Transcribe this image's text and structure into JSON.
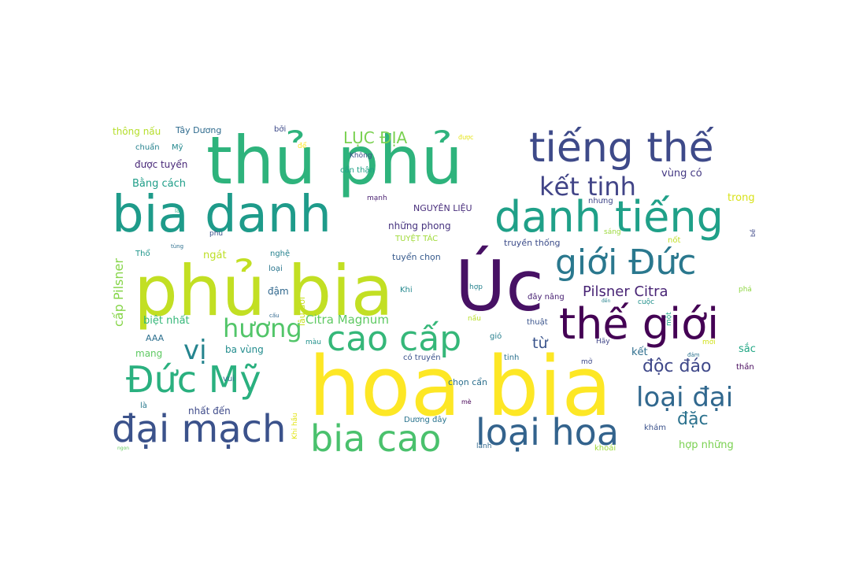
{
  "words": [
    {
      "text": "hoa bia",
      "color": "#fde725"
    },
    {
      "text": "phủ bia",
      "color": "#c2df23"
    },
    {
      "text": "thủ phủ",
      "color": "#2eb37c"
    },
    {
      "text": "Úc",
      "color": "#471164"
    },
    {
      "text": "bia danh",
      "color": "#1e9b8a"
    },
    {
      "text": "tiếng thế",
      "color": "#3e4a89"
    },
    {
      "text": "danh tiếng",
      "color": "#1fa088"
    },
    {
      "text": "thế giới",
      "color": "#440154"
    },
    {
      "text": "giới Đức",
      "color": "#2a788e"
    },
    {
      "text": "cao cấp",
      "color": "#35b779"
    },
    {
      "text": "Đức Mỹ",
      "color": "#2ab07f"
    },
    {
      "text": "đại mạch",
      "color": "#3b528b"
    },
    {
      "text": "bia cao",
      "color": "#4ac16d"
    },
    {
      "text": "loại hoa",
      "color": "#33638d"
    },
    {
      "text": "kết tinh",
      "color": "#414487"
    },
    {
      "text": "loại đại",
      "color": "#31688e"
    },
    {
      "text": "hương",
      "color": "#52c569"
    },
    {
      "text": "vị",
      "color": "#25848e"
    },
    {
      "text": "LỤC ĐỊA",
      "color": "#7ad151"
    },
    {
      "text": "Pilsner Citra",
      "color": "#482475"
    },
    {
      "text": "độc đáo",
      "color": "#3f4889"
    },
    {
      "text": "đặc",
      "color": "#2c728e"
    },
    {
      "text": "Citra Magnum",
      "color": "#5ec962"
    },
    {
      "text": "cấp Pilsner",
      "color": "#86d549"
    },
    {
      "text": "từ",
      "color": "#3a548c"
    },
    {
      "text": "thông nấu",
      "color": "#b5de2b"
    },
    {
      "text": "Tây Dương",
      "color": "#2f6b8e"
    },
    {
      "text": "bởi",
      "color": "#3e4a89"
    },
    {
      "text": "chuẩn",
      "color": "#26828e"
    },
    {
      "text": "Mỹ",
      "color": "#23888e"
    },
    {
      "text": "được tuyển",
      "color": "#482878"
    },
    {
      "text": "Bằng cách",
      "color": "#1f9e89"
    },
    {
      "text": "Không",
      "color": "#3d4e8a"
    },
    {
      "text": "cẩn thận",
      "color": "#1fa187"
    },
    {
      "text": "vùng có",
      "color": "#443983"
    },
    {
      "text": "trong",
      "color": "#d8e219"
    },
    {
      "text": "NGUYÊN LIỆU",
      "color": "#472d7b"
    },
    {
      "text": "những phong",
      "color": "#46337f"
    },
    {
      "text": "TUYỆT TÁC",
      "color": "#a0da39"
    },
    {
      "text": "truyền thống",
      "color": "#3d4d8a"
    },
    {
      "text": "tuyển chọn",
      "color": "#375a8c"
    },
    {
      "text": "ngát",
      "color": "#bddf26"
    },
    {
      "text": "nghệ",
      "color": "#26828e"
    },
    {
      "text": "Thổ",
      "color": "#1f968b"
    },
    {
      "text": "loại",
      "color": "#2a768e"
    },
    {
      "text": "lâu đời",
      "color": "#c8e020"
    },
    {
      "text": "đậm",
      "color": "#31688e"
    },
    {
      "text": "biệt nhất",
      "color": "#35b779"
    },
    {
      "text": "AAA",
      "color": "#2d708e"
    },
    {
      "text": "mang",
      "color": "#5ec962"
    },
    {
      "text": "ba vùng",
      "color": "#228c8d"
    },
    {
      "text": "màu",
      "color": "#21918c"
    },
    {
      "text": "gió",
      "color": "#277f8e"
    },
    {
      "text": "có truyền",
      "color": "#3b528b"
    },
    {
      "text": "tinh",
      "color": "#2c728e"
    },
    {
      "text": "mở",
      "color": "#3e4989"
    },
    {
      "text": "Hãy",
      "color": "#404688"
    },
    {
      "text": "kết",
      "color": "#2e6e8e"
    },
    {
      "text": "sắc",
      "color": "#22a785"
    },
    {
      "text": "thần",
      "color": "#46085c"
    },
    {
      "text": "vui",
      "color": "#2f6c8e"
    },
    {
      "text": "Khi hầu",
      "color": "#e2e418"
    },
    {
      "text": "chọn cẩn",
      "color": "#2d708e"
    },
    {
      "text": "là",
      "color": "#29798e"
    },
    {
      "text": "nhất đến",
      "color": "#3e4a89"
    },
    {
      "text": "Dương đây",
      "color": "#2b748e"
    },
    {
      "text": "khám",
      "color": "#3b528b"
    },
    {
      "text": "hợp những",
      "color": "#7ad151"
    },
    {
      "text": "khoái",
      "color": "#9fda3a"
    },
    {
      "text": "lành",
      "color": "#31688e"
    },
    {
      "text": "đây nâng",
      "color": "#482173"
    },
    {
      "text": "cuộc",
      "color": "#21918c"
    },
    {
      "text": "phá",
      "color": "#8fd744"
    },
    {
      "text": "thuật",
      "color": "#3a548c"
    },
    {
      "text": "một",
      "color": "#20a386"
    },
    {
      "text": "Khi",
      "color": "#23888e"
    },
    {
      "text": "hợp",
      "color": "#26828e"
    },
    {
      "text": "mạnh",
      "color": "#481f70"
    },
    {
      "text": "nhưng",
      "color": "#3f4788"
    },
    {
      "text": "sáng",
      "color": "#9bd93c"
    },
    {
      "text": "nốt",
      "color": "#c0df25"
    },
    {
      "text": "phủ",
      "color": "#3b528b"
    },
    {
      "text": "để",
      "color": "#fde725"
    },
    {
      "text": "được",
      "color": "#e5e419"
    },
    {
      "text": "nấu",
      "color": "#b8de29"
    },
    {
      "text": "mè",
      "color": "#440154"
    },
    {
      "text": "mới",
      "color": "#d2e21b"
    },
    {
      "text": "đảm",
      "color": "#2c728e"
    },
    {
      "text": "bề",
      "color": "#3e4989"
    },
    {
      "text": "là",
      "color": "#27ad81"
    },
    {
      "text": "tùng",
      "color": "#2d708e"
    },
    {
      "text": "cấu",
      "color": "#31688e"
    },
    {
      "text": "đến",
      "color": "#26828e"
    },
    {
      "text": "ngon",
      "color": "#65cb5e"
    }
  ]
}
